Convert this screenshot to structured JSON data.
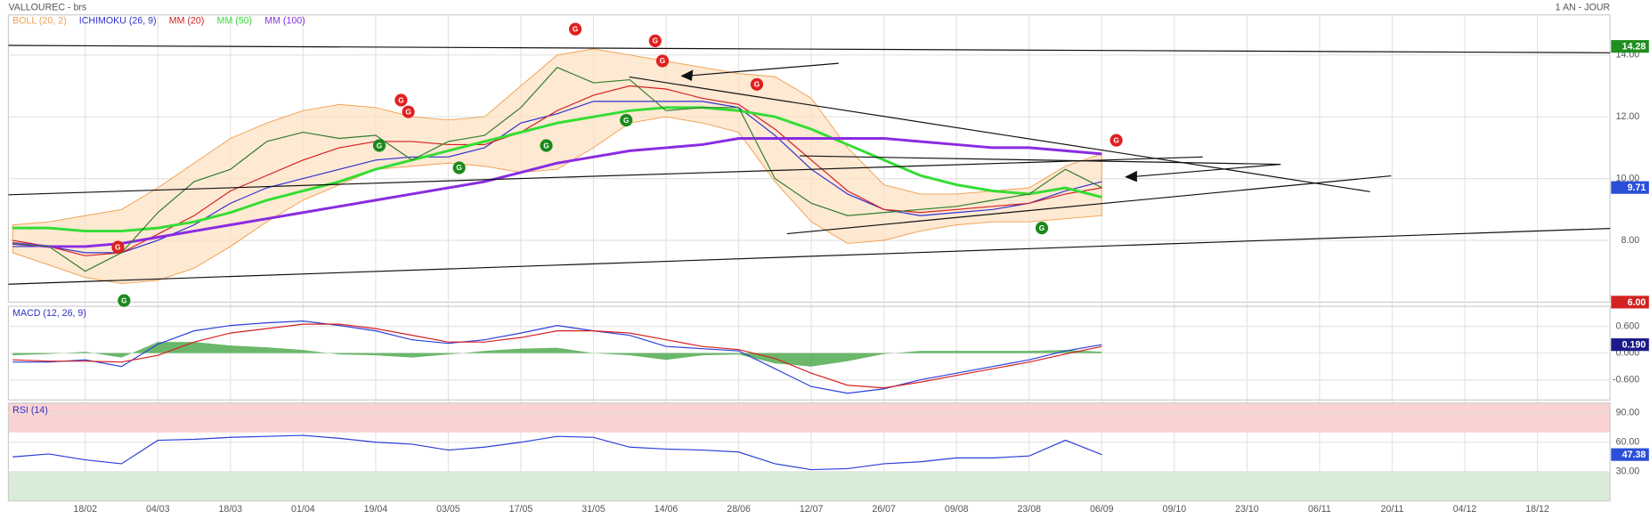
{
  "chart_data": [
    {
      "type": "line",
      "title": "VALLOUREC - brs",
      "subtitle": "1 AN - JOUR",
      "categories": [
        null,
        null,
        "18/02",
        null,
        "04/03",
        null,
        "18/03",
        null,
        "01/04",
        null,
        "19/04",
        null,
        "03/05",
        null,
        "17/05",
        null,
        "31/05",
        null,
        "14/06",
        null,
        "28/06",
        null,
        "12/07",
        null,
        "26/07",
        null,
        "09/08",
        null,
        "23/08",
        null,
        "06/09",
        null,
        "09/10",
        null,
        "23/10",
        null,
        "06/11",
        null,
        "20/11",
        null,
        "04/12",
        null,
        "18/12"
      ],
      "series": [
        {
          "name": "BOLL (20, 2)",
          "color": "#f0a050",
          "kind": "band",
          "upper": [
            8.5,
            8.6,
            8.8,
            9.0,
            9.7,
            10.5,
            11.3,
            11.8,
            12.2,
            12.4,
            12.3,
            12.0,
            11.9,
            12.0,
            13.0,
            14.0,
            14.2,
            14.0,
            13.8,
            13.6,
            13.4,
            13.3,
            12.6,
            11.0,
            9.8,
            9.5,
            9.5,
            9.6,
            9.7,
            10.4,
            10.8,
            null,
            null,
            null,
            null,
            null,
            null,
            null,
            null,
            null,
            null,
            null,
            null
          ],
          "lower": [
            7.6,
            7.2,
            6.8,
            6.6,
            6.7,
            7.1,
            7.8,
            8.6,
            9.3,
            9.8,
            10.3,
            10.4,
            10.5,
            10.4,
            10.2,
            10.3,
            11.0,
            11.8,
            12.0,
            11.8,
            11.5,
            9.9,
            8.6,
            7.9,
            8.0,
            8.3,
            8.5,
            8.6,
            8.6,
            8.7,
            8.8,
            null,
            null,
            null,
            null,
            null,
            null,
            null,
            null,
            null,
            null,
            null,
            null
          ]
        },
        {
          "name": "ICHIMOKU (26, 9)",
          "color": "#3030d0",
          "kind": "line",
          "values": [
            7.8,
            7.8,
            7.6,
            7.6,
            8.0,
            8.5,
            9.2,
            9.7,
            10.0,
            10.3,
            10.6,
            10.7,
            10.7,
            11.0,
            11.8,
            12.1,
            12.5,
            12.5,
            12.5,
            12.5,
            12.3,
            11.4,
            10.3,
            9.5,
            9.0,
            8.8,
            8.9,
            9.0,
            9.2,
            9.6,
            9.9,
            null,
            null,
            null,
            null,
            null,
            null,
            null,
            null,
            null,
            null,
            null,
            null
          ]
        },
        {
          "name": "MM (20)",
          "color": "#d62020",
          "kind": "line",
          "values": [
            8.0,
            7.8,
            7.5,
            7.6,
            8.2,
            8.8,
            9.6,
            10.1,
            10.6,
            11.0,
            11.2,
            11.2,
            11.1,
            11.1,
            11.5,
            12.2,
            12.7,
            13.0,
            12.9,
            12.6,
            12.4,
            11.6,
            10.6,
            9.6,
            9.0,
            8.9,
            9.0,
            9.1,
            9.2,
            9.5,
            9.7,
            null,
            null,
            null,
            null,
            null,
            null,
            null,
            null,
            null,
            null,
            null,
            null
          ]
        },
        {
          "name": "MM (50)",
          "color": "#33dd33",
          "kind": "line",
          "width": 2.5,
          "values": [
            8.4,
            8.4,
            8.3,
            8.3,
            8.4,
            8.6,
            8.9,
            9.3,
            9.6,
            9.9,
            10.3,
            10.6,
            10.9,
            11.2,
            11.5,
            11.8,
            12.0,
            12.2,
            12.3,
            12.3,
            12.2,
            12.0,
            11.6,
            11.1,
            10.6,
            10.1,
            9.8,
            9.6,
            9.5,
            9.7,
            9.4,
            null,
            null,
            null,
            null,
            null,
            null,
            null,
            null,
            null,
            null,
            null,
            null
          ]
        },
        {
          "name": "MM (100)",
          "color": "#8a2be2",
          "kind": "line",
          "width": 2.5,
          "values": [
            7.9,
            7.8,
            7.8,
            7.9,
            8.1,
            8.3,
            8.5,
            8.7,
            8.9,
            9.1,
            9.3,
            9.5,
            9.7,
            9.9,
            10.2,
            10.5,
            10.7,
            10.9,
            11.0,
            11.1,
            11.3,
            11.3,
            11.3,
            11.3,
            11.3,
            11.2,
            11.1,
            11.0,
            11.0,
            10.9,
            10.8,
            null,
            null,
            null,
            null,
            null,
            null,
            null,
            null,
            null,
            null,
            null,
            null
          ]
        },
        {
          "color": "#2f7d2f",
          "kind": "line",
          "values": [
            7.9,
            7.8,
            7.0,
            7.6,
            8.9,
            9.9,
            10.3,
            11.2,
            11.5,
            11.3,
            11.4,
            10.6,
            11.2,
            11.4,
            12.3,
            13.6,
            13.1,
            13.2,
            12.2,
            12.3,
            12.3,
            10.0,
            9.2,
            8.8,
            8.9,
            9.0,
            9.1,
            9.3,
            9.5,
            10.3,
            9.71,
            null,
            null,
            null,
            null,
            null,
            null,
            null,
            null,
            null,
            null,
            null,
            null
          ]
        }
      ],
      "ylim": [
        6.0,
        15.3
      ],
      "yticks": [
        {
          "value": 8,
          "label": "8.00"
        },
        {
          "value": 10,
          "label": "10.00"
        },
        {
          "value": 12,
          "label": "12.00"
        },
        {
          "value": 14,
          "label": "14.00"
        }
      ],
      "grid": true,
      "markers": [
        {
          "value": 14.28,
          "color": "#1f8f1f"
        },
        {
          "value": 9.71,
          "color": "#2b4fd8"
        },
        {
          "value": 6,
          "label": "6.00",
          "color": "#d22222"
        }
      ],
      "signals": [
        {
          "label": "G",
          "x": 15.5,
          "y": 14.84,
          "color": "#e02020"
        },
        {
          "label": "G",
          "x": 17.7,
          "y": 14.46,
          "color": "#e02020"
        },
        {
          "label": "G",
          "x": 17.9,
          "y": 13.81,
          "color": "#e02020"
        },
        {
          "label": "G",
          "x": 20.5,
          "y": 13.05,
          "color": "#e02020"
        },
        {
          "label": "G",
          "x": 10.7,
          "y": 12.54,
          "color": "#e02020"
        },
        {
          "label": "G",
          "x": 10.9,
          "y": 12.16,
          "color": "#e02020"
        },
        {
          "label": "G",
          "x": 2.9,
          "y": 7.78,
          "color": "#e02020"
        },
        {
          "label": "G",
          "x": 30.4,
          "y": 11.24,
          "color": "#e02020"
        },
        {
          "label": "G",
          "x": 10.1,
          "y": 11.07,
          "color": "#1a8a1a"
        },
        {
          "label": "G",
          "x": 12.3,
          "y": 10.35,
          "color": "#1a8a1a"
        },
        {
          "label": "G",
          "x": 14.7,
          "y": 11.07,
          "color": "#1a8a1a"
        },
        {
          "label": "G",
          "x": 16.9,
          "y": 11.89,
          "color": "#1a8a1a"
        },
        {
          "label": "G",
          "x": 28.35,
          "y": 8.4,
          "color": "#1a8a1a"
        },
        {
          "label": "G",
          "x": 3.07,
          "y": 6.05,
          "color": "#1a8a1a"
        }
      ]
    },
    {
      "type": "line",
      "title": "MACD (12, 26, 9)",
      "series": [
        {
          "color": "#3aa03a",
          "kind": "area",
          "values": [
            -0.05,
            -0.02,
            0.03,
            -0.1,
            0.25,
            0.25,
            0.17,
            0.13,
            0.07,
            -0.03,
            -0.05,
            -0.1,
            -0.03,
            0.05,
            0.1,
            0.12,
            0.0,
            -0.05,
            -0.15,
            -0.05,
            -0.03,
            -0.23,
            -0.3,
            -0.18,
            -0.02,
            0.05,
            0.05,
            0.05,
            0.05,
            0.07,
            0.03,
            null,
            null,
            null,
            null,
            null,
            null,
            null,
            null,
            null,
            null,
            null,
            null
          ]
        },
        {
          "color": "#2b3fd8",
          "kind": "line",
          "values": [
            -0.2,
            -0.2,
            -0.15,
            -0.3,
            0.2,
            0.5,
            0.62,
            0.68,
            0.72,
            0.62,
            0.5,
            0.3,
            0.22,
            0.3,
            0.45,
            0.62,
            0.5,
            0.4,
            0.15,
            0.1,
            0.05,
            -0.35,
            -0.75,
            -0.9,
            -0.8,
            -0.6,
            -0.45,
            -0.3,
            -0.15,
            0.05,
            0.19,
            null,
            null,
            null,
            null,
            null,
            null,
            null,
            null,
            null,
            null,
            null,
            null
          ]
        },
        {
          "color": "#d62020",
          "kind": "line",
          "values": [
            -0.15,
            -0.18,
            -0.18,
            -0.2,
            -0.05,
            0.25,
            0.45,
            0.55,
            0.65,
            0.65,
            0.55,
            0.4,
            0.25,
            0.25,
            0.35,
            0.5,
            0.5,
            0.45,
            0.3,
            0.15,
            0.08,
            -0.12,
            -0.45,
            -0.72,
            -0.78,
            -0.65,
            -0.5,
            -0.35,
            -0.2,
            -0.02,
            0.15,
            null,
            null,
            null,
            null,
            null,
            null,
            null,
            null,
            null,
            null,
            null,
            null
          ]
        }
      ],
      "ylim": [
        -1.05,
        1.05
      ],
      "yticks": [
        {
          "value": -0.6,
          "label": "-0.600"
        },
        {
          "value": 0,
          "label": "0.000"
        },
        {
          "value": 0.6,
          "label": "0.600"
        }
      ],
      "grid": true,
      "markers": [
        {
          "value": 0.19,
          "label": "0.190",
          "color": "#1a1a8a"
        }
      ]
    },
    {
      "type": "line",
      "title": "RSI (14)",
      "series": [
        {
          "color": "#2b3fd8",
          "kind": "line",
          "values": [
            45,
            48,
            42,
            38,
            62,
            63,
            65,
            66,
            67,
            64,
            60,
            58,
            52,
            55,
            60,
            66,
            65,
            55,
            53,
            52,
            50,
            38,
            32,
            33,
            38,
            40,
            44,
            44,
            46,
            62,
            47.38,
            null,
            null,
            null,
            null,
            null,
            null,
            null,
            null,
            null,
            null,
            null,
            null
          ]
        }
      ],
      "ylim": [
        0,
        100
      ],
      "yticks": [
        {
          "value": 30,
          "label": "30.00"
        },
        {
          "value": 60,
          "label": "60.00"
        },
        {
          "value": 90,
          "label": "90.00"
        }
      ],
      "grid": true,
      "bands": [
        {
          "from": 70,
          "to": 100,
          "color": "#f9d2d2"
        },
        {
          "from": 0,
          "to": 30,
          "color": "#d8ecd8"
        }
      ],
      "markers": [
        {
          "value": 47.38,
          "color": "#2b4fd8"
        }
      ]
    }
  ]
}
